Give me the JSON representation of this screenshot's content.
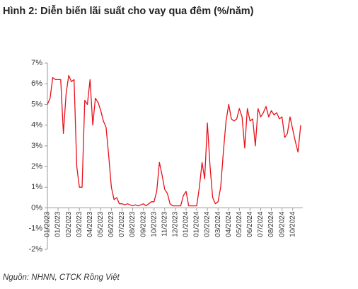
{
  "chart_data": {
    "type": "line",
    "title": "Hình 2: Diễn biến lãi suất cho vay qua đêm (%/năm)",
    "note": "Nguồn: NHNN, CTCK Rồng Việt",
    "categories": [
      "01/2023",
      null,
      null,
      null,
      "01/2023",
      null,
      null,
      null,
      "02/2023",
      null,
      null,
      null,
      "03/2023",
      null,
      null,
      null,
      "04/2023",
      null,
      null,
      null,
      "05/2023",
      null,
      null,
      null,
      "06/2023",
      null,
      null,
      null,
      "07/2023",
      null,
      null,
      null,
      "08/2023",
      null,
      null,
      null,
      "09/2023",
      null,
      null,
      null,
      "10/2023",
      null,
      null,
      null,
      "11/2023",
      null,
      null,
      null,
      "12/2023",
      null,
      null,
      null,
      "01/2024",
      null,
      null,
      null,
      "01/2024",
      null,
      null,
      null,
      "02/2024",
      null,
      null,
      null,
      "03/2024",
      null,
      null,
      null,
      "04/2024",
      null,
      null,
      null,
      "05/2024",
      null,
      null,
      null,
      "06/2024",
      null,
      null,
      null,
      "07/2024",
      null,
      null,
      null,
      "08/2024",
      null,
      null,
      null,
      "09/2024",
      null,
      null,
      null,
      "10/2024",
      null,
      null,
      null
    ],
    "series": [
      {
        "color": "#e8101a",
        "values": [
          5.0,
          5.3,
          6.3,
          6.2,
          6.2,
          6.2,
          3.6,
          5.5,
          6.4,
          6.1,
          6.2,
          2.0,
          1.0,
          1.0,
          5.2,
          5.0,
          6.2,
          4.0,
          5.3,
          5.1,
          4.7,
          4.2,
          3.9,
          2.5,
          1.0,
          0.4,
          0.5,
          0.2,
          0.2,
          0.15,
          0.2,
          0.15,
          0.1,
          0.15,
          0.1,
          0.15,
          0.2,
          0.1,
          0.2,
          0.3,
          0.3,
          0.8,
          2.2,
          1.6,
          0.9,
          0.7,
          0.2,
          0.1,
          0.1,
          0.1,
          0.1,
          0.6,
          0.8,
          0.1,
          0.1,
          0.1,
          0.1,
          1.0,
          2.2,
          1.4,
          4.1,
          2.0,
          0.5,
          0.2,
          0.3,
          1.0,
          2.7,
          4.2,
          5.0,
          4.3,
          4.2,
          4.3,
          4.8,
          4.4,
          2.9,
          4.8,
          4.2,
          4.3,
          3.0,
          4.8,
          4.4,
          4.6,
          4.9,
          4.4,
          4.7,
          4.5,
          4.6,
          4.3,
          4.4,
          3.4,
          3.6,
          4.4,
          3.8,
          3.2,
          2.7,
          4.0
        ]
      }
    ],
    "ylim": [
      -2,
      7
    ],
    "yticks": [
      {
        "value": -2,
        "label": "-2%"
      },
      {
        "value": -1,
        "label": "-1%"
      },
      {
        "value": 0,
        "label": "0%"
      },
      {
        "value": 1,
        "label": "1%"
      },
      {
        "value": 2,
        "label": "2%"
      },
      {
        "value": 3,
        "label": "3%"
      },
      {
        "value": 4,
        "label": "4%"
      },
      {
        "value": 5,
        "label": "5%"
      },
      {
        "value": 6,
        "label": "6%"
      },
      {
        "value": 7,
        "label": "7%"
      }
    ],
    "grid": false
  }
}
